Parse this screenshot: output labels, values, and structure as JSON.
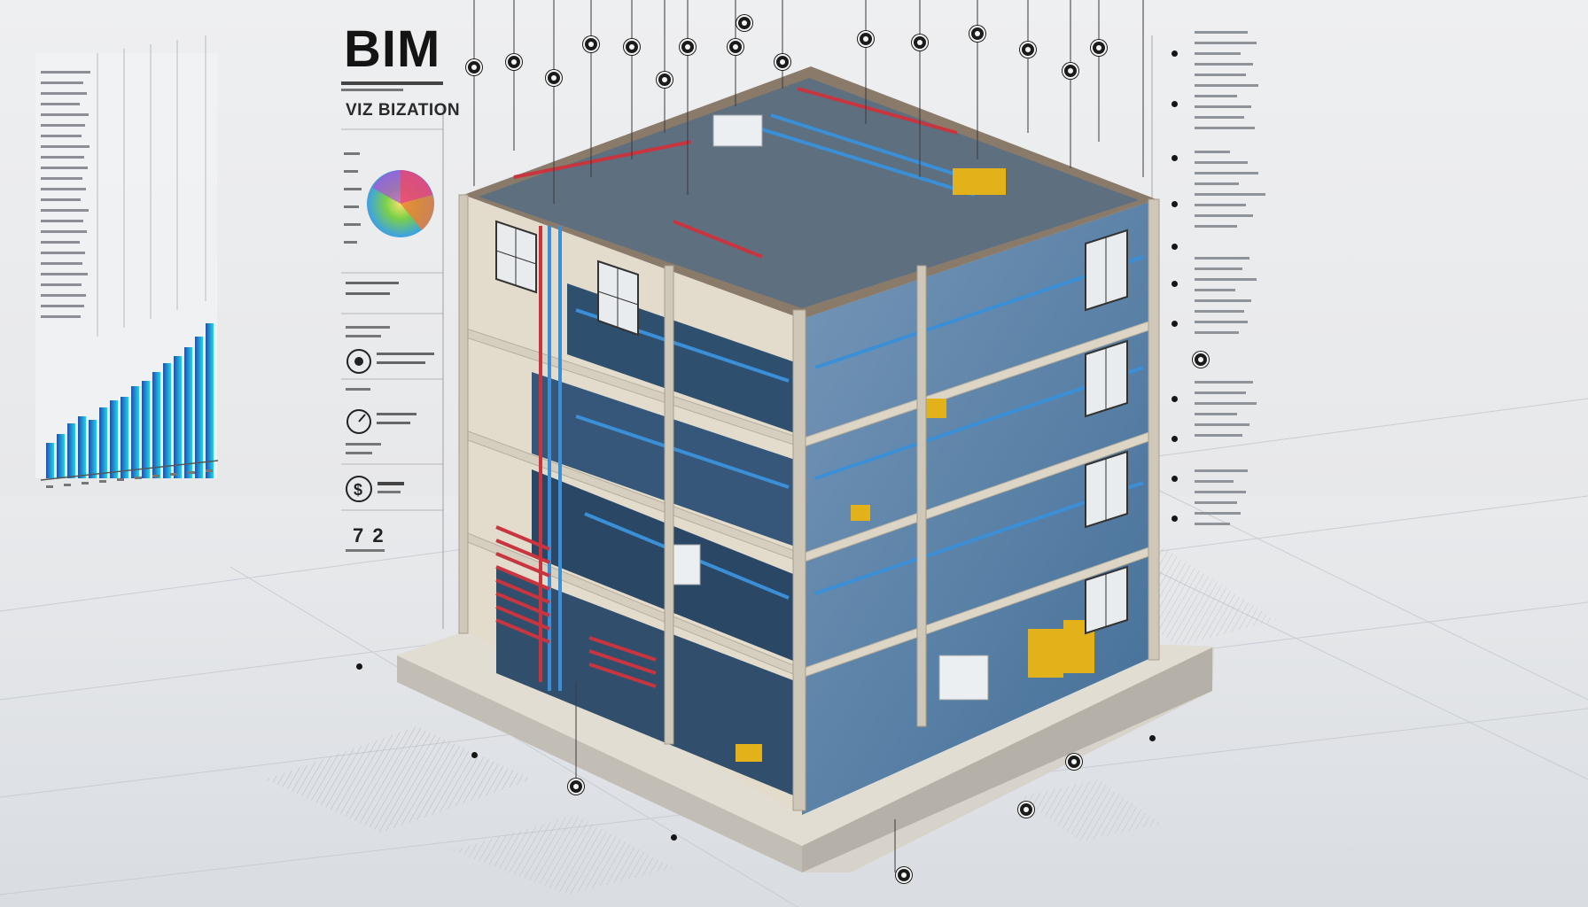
{
  "header": {
    "title": "BIM",
    "subtitle": "VIZ BIZATION"
  },
  "legend_panel": {
    "ring_labels": [
      "",
      "",
      "",
      "",
      ""
    ],
    "stat_value": "7 2"
  },
  "colors": {
    "pipe_red": "#c8353f",
    "pipe_blue": "#3a8fd6",
    "equipment_yellow": "#e3b21b",
    "structure_beige": "#e8dfcf",
    "chart_gradient_start": "#1d4fb3",
    "chart_gradient_end": "#22d3e6"
  },
  "icons": [
    "badge-icon",
    "gauge-icon",
    "dollar-icon",
    "callout-pin-icon"
  ]
}
